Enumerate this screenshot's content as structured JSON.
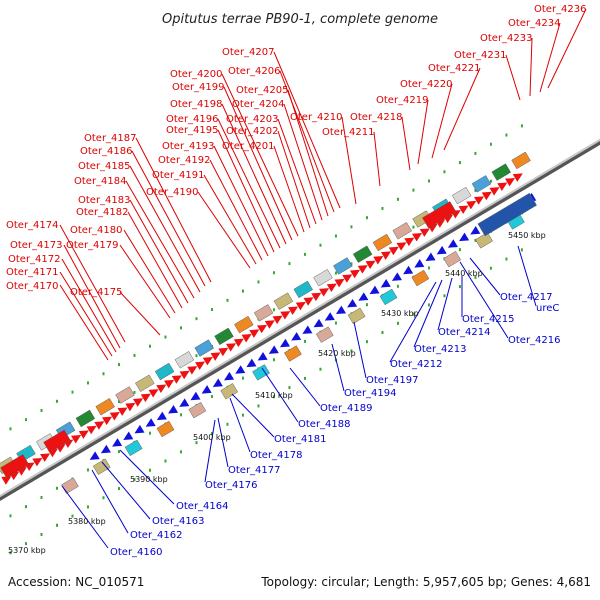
{
  "title": "Opitutus terrae PB90-1, complete genome",
  "footer": {
    "accession": "Accession: NC_010571",
    "summary": "Topology: circular; Length: 5,957,605 bp; Genes: 4,681"
  },
  "colors": {
    "forward_label": "#dd0000",
    "reverse_label": "#0000cc",
    "backbone": "#999999",
    "cds_forward": "#ee1111",
    "cds_reverse": "#1111dd",
    "tick_dot": "#33aa33"
  },
  "scale_ticks": [
    "5370 kbp",
    "5380 kbp",
    "5390 kbp",
    "5400 kbp",
    "5410 kbp",
    "5420 kbp",
    "5430 kbp",
    "5440 kbp",
    "5450 kbp"
  ],
  "forward_labels": [
    "Oter_4170",
    "Oter_4171",
    "Oter_4172",
    "Oter_4173",
    "Oter_4174",
    "Oter_4175",
    "Oter_4179",
    "Oter_4180",
    "Oter_4182",
    "Oter_4183",
    "Oter_4184",
    "Oter_4185",
    "Oter_4186",
    "Oter_4187",
    "Oter_4190",
    "Oter_4191",
    "Oter_4192",
    "Oter_4193",
    "Oter_4195",
    "Oter_4196",
    "Oter_4198",
    "Oter_4199",
    "Oter_4200",
    "Oter_4201",
    "Oter_4202",
    "Oter_4203",
    "Oter_4204",
    "Oter_4205",
    "Oter_4206",
    "Oter_4207",
    "Oter_4210",
    "Oter_4211",
    "Oter_4218",
    "Oter_4219",
    "Oter_4220",
    "Oter_4221",
    "Oter_4231",
    "Oter_4233",
    "Oter_4234",
    "Oter_4236"
  ],
  "reverse_labels": [
    "Oter_4160",
    "Oter_4162",
    "Oter_4163",
    "Oter_4164",
    "Oter_4176",
    "Oter_4177",
    "Oter_4178",
    "Oter_4181",
    "Oter_4188",
    "Oter_4189",
    "Oter_4194",
    "Oter_4197",
    "Oter_4212",
    "Oter_4213",
    "Oter_4214",
    "Oter_4215",
    "Oter_4216",
    "Oter_4217",
    "ureC"
  ]
}
